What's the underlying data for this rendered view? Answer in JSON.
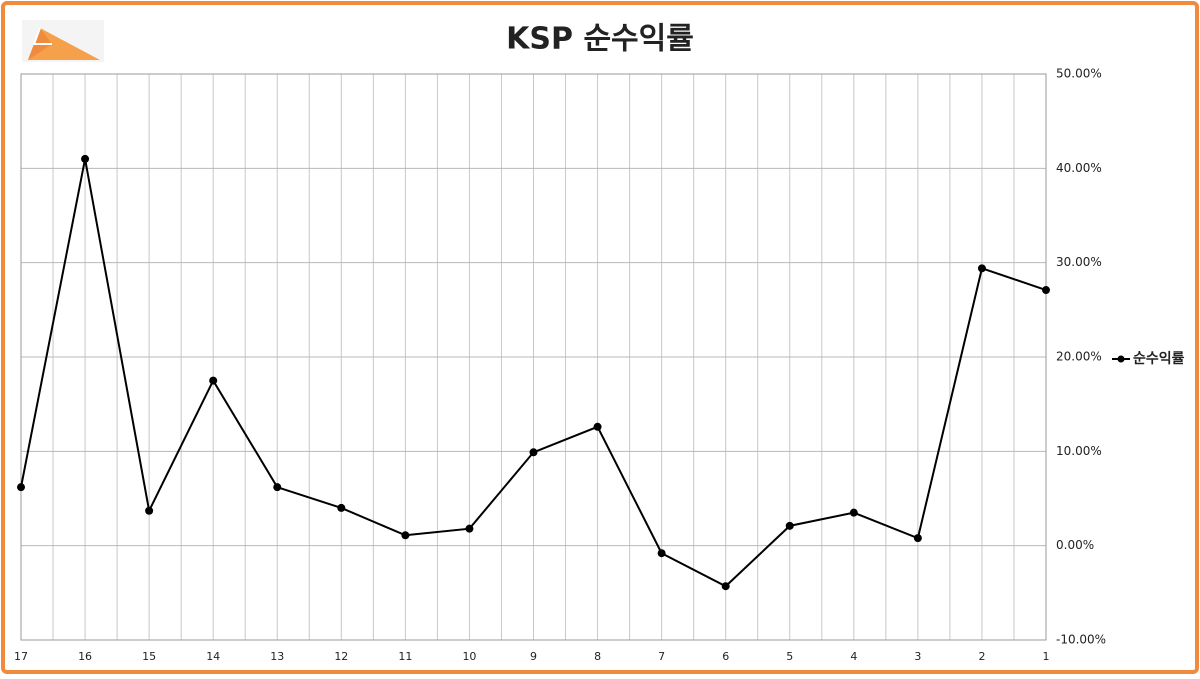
{
  "chart_data": {
    "type": "line",
    "title": "KSP 순수익률",
    "categories": [
      "17",
      "16",
      "15",
      "14",
      "13",
      "12",
      "11",
      "10",
      "9",
      "8",
      "7",
      "6",
      "5",
      "4",
      "3",
      "2",
      "1"
    ],
    "series": [
      {
        "name": "순수익률",
        "color": "#000000",
        "values": [
          6.2,
          41.0,
          3.7,
          17.5,
          6.2,
          4.0,
          1.1,
          1.8,
          9.9,
          12.6,
          -0.8,
          -4.3,
          2.1,
          3.5,
          0.8,
          29.4,
          27.1
        ]
      }
    ],
    "ylim": [
      -10,
      50
    ],
    "yticks": [
      {
        "value": -10,
        "label": "-10.00%"
      },
      {
        "value": 0,
        "label": "0.00%"
      },
      {
        "value": 10,
        "label": "10.00%"
      },
      {
        "value": 20,
        "label": "20.00%"
      },
      {
        "value": 30,
        "label": "30.00%"
      },
      {
        "value": 40,
        "label": "40.00%"
      },
      {
        "value": 50,
        "label": "50.00%"
      }
    ],
    "grid": true,
    "legend_position": "right"
  }
}
